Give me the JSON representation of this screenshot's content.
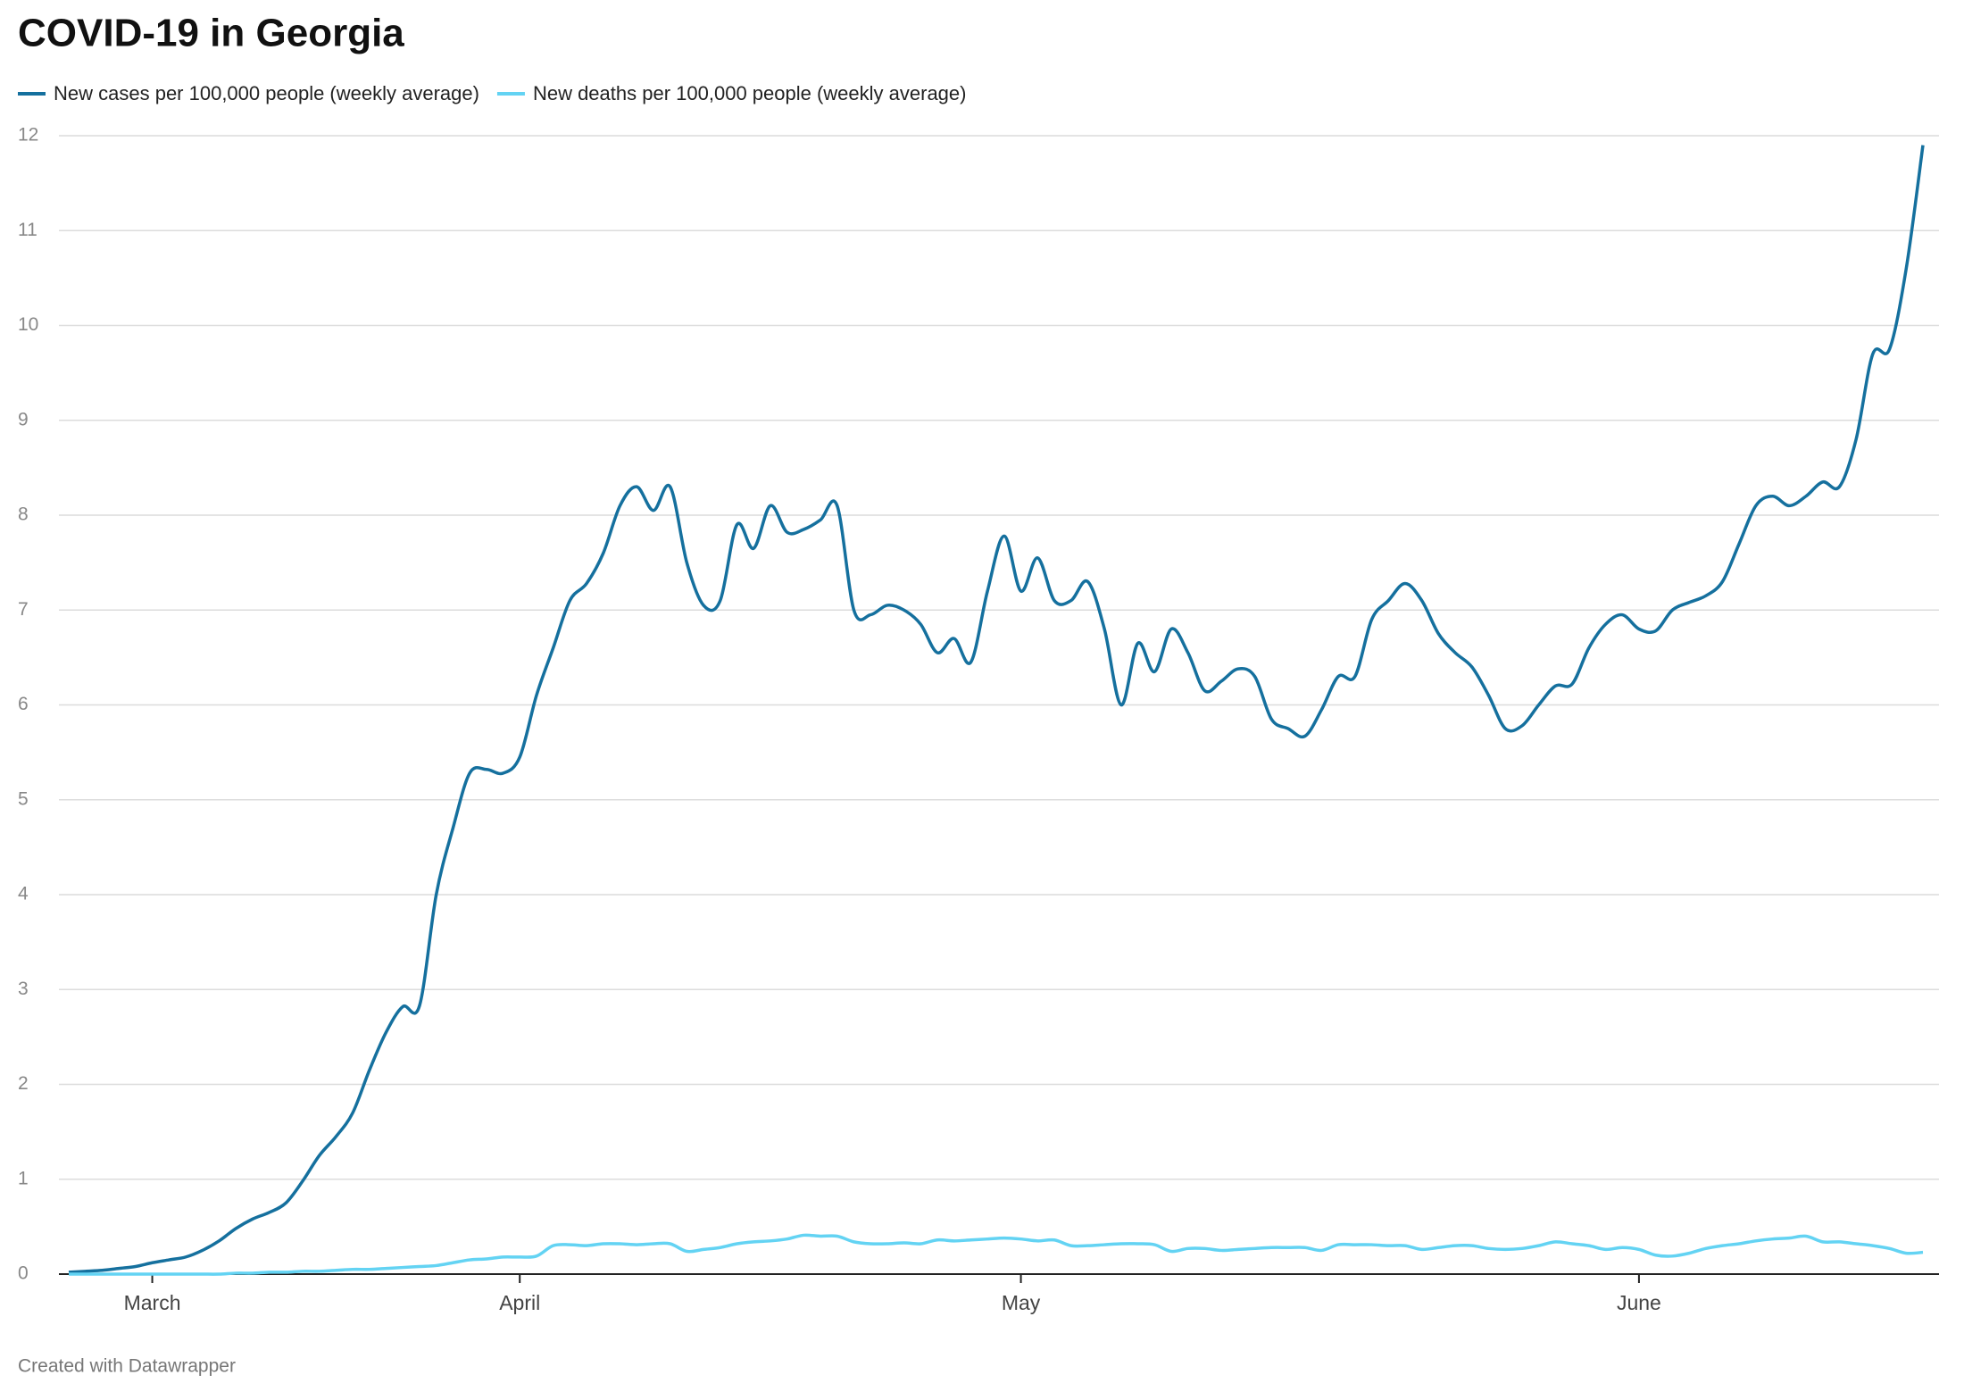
{
  "chart_data": {
    "type": "line",
    "title": "COVID-19 in Georgia",
    "footer": "Created with Datawrapper",
    "categories": [
      null,
      null,
      null,
      null,
      null,
      "March",
      null,
      null,
      null,
      null,
      null,
      null,
      null,
      null,
      null,
      null,
      null,
      null,
      null,
      null,
      null,
      null,
      null,
      null,
      null,
      null,
      null,
      "April",
      null,
      null,
      null,
      null,
      null,
      null,
      null,
      null,
      null,
      null,
      null,
      null,
      null,
      null,
      null,
      null,
      null,
      null,
      null,
      null,
      null,
      null,
      null,
      null,
      null,
      null,
      null,
      null,
      null,
      "May",
      null,
      null,
      null,
      null,
      null,
      null,
      null,
      null,
      null,
      null,
      null,
      null,
      null,
      null,
      null,
      null,
      null,
      null,
      null,
      null,
      null,
      null,
      null,
      null,
      null,
      null,
      null,
      null,
      null,
      null,
      null,
      null,
      null,
      null,
      null,
      null,
      "June",
      null,
      null,
      null,
      null,
      null,
      null,
      null,
      null,
      null,
      null,
      null,
      null,
      null,
      null,
      null,
      null,
      null
    ],
    "series": [
      {
        "name": "New cases per 100,000 people (weekly average)",
        "color": "#15709e",
        "values": [
          0.02,
          0.03,
          0.04,
          0.06,
          0.08,
          0.12,
          0.15,
          0.18,
          0.25,
          0.35,
          0.48,
          0.58,
          0.65,
          0.75,
          0.98,
          1.25,
          1.45,
          1.7,
          2.15,
          2.55,
          2.82,
          2.83,
          4.0,
          4.7,
          5.28,
          5.32,
          5.28,
          5.45,
          6.1,
          6.6,
          7.1,
          7.28,
          7.6,
          8.1,
          8.3,
          8.05,
          8.3,
          7.5,
          7.05,
          7.1,
          7.9,
          7.65,
          8.1,
          7.82,
          7.85,
          7.95,
          8.1,
          7.0,
          6.95,
          7.05,
          7.0,
          6.85,
          6.55,
          6.7,
          6.45,
          7.2,
          7.78,
          7.2,
          7.55,
          7.1,
          7.1,
          7.3,
          6.8,
          6.0,
          6.65,
          6.35,
          6.8,
          6.55,
          6.15,
          6.25,
          6.38,
          6.3,
          5.85,
          5.75,
          5.67,
          5.95,
          6.3,
          6.3,
          6.9,
          7.1,
          7.28,
          7.1,
          6.75,
          6.55,
          6.4,
          6.1,
          5.75,
          5.78,
          6.0,
          6.2,
          6.22,
          6.6,
          6.85,
          6.95,
          6.8,
          6.78,
          7.0,
          7.08,
          7.15,
          7.3,
          7.7,
          8.1,
          8.2,
          8.1,
          8.2,
          8.35,
          8.3,
          8.8,
          9.7,
          9.75,
          10.6,
          11.9
        ]
      },
      {
        "name": "New deaths per 100,000 people (weekly average)",
        "color": "#63d3f3",
        "values": [
          0,
          0,
          0,
          0,
          0,
          0,
          0,
          0,
          0,
          0,
          0.01,
          0.01,
          0.02,
          0.02,
          0.03,
          0.03,
          0.04,
          0.05,
          0.05,
          0.06,
          0.07,
          0.08,
          0.09,
          0.12,
          0.15,
          0.16,
          0.18,
          0.18,
          0.19,
          0.3,
          0.31,
          0.3,
          0.32,
          0.32,
          0.31,
          0.32,
          0.32,
          0.24,
          0.26,
          0.28,
          0.32,
          0.34,
          0.35,
          0.37,
          0.41,
          0.4,
          0.4,
          0.34,
          0.32,
          0.32,
          0.33,
          0.32,
          0.36,
          0.35,
          0.36,
          0.37,
          0.38,
          0.37,
          0.35,
          0.36,
          0.3,
          0.3,
          0.31,
          0.32,
          0.32,
          0.31,
          0.24,
          0.27,
          0.27,
          0.25,
          0.26,
          0.27,
          0.28,
          0.28,
          0.28,
          0.25,
          0.31,
          0.31,
          0.31,
          0.3,
          0.3,
          0.26,
          0.28,
          0.3,
          0.3,
          0.27,
          0.26,
          0.27,
          0.3,
          0.34,
          0.32,
          0.3,
          0.26,
          0.28,
          0.26,
          0.2,
          0.19,
          0.22,
          0.27,
          0.3,
          0.32,
          0.35,
          0.37,
          0.38,
          0.4,
          0.34,
          0.34,
          0.32,
          0.3,
          0.27,
          0.22,
          0.23
        ]
      }
    ],
    "ylim": [
      0,
      12
    ],
    "yticks": [
      0,
      1,
      2,
      3,
      4,
      5,
      6,
      7,
      8,
      9,
      10,
      11,
      12
    ],
    "grid": true
  }
}
